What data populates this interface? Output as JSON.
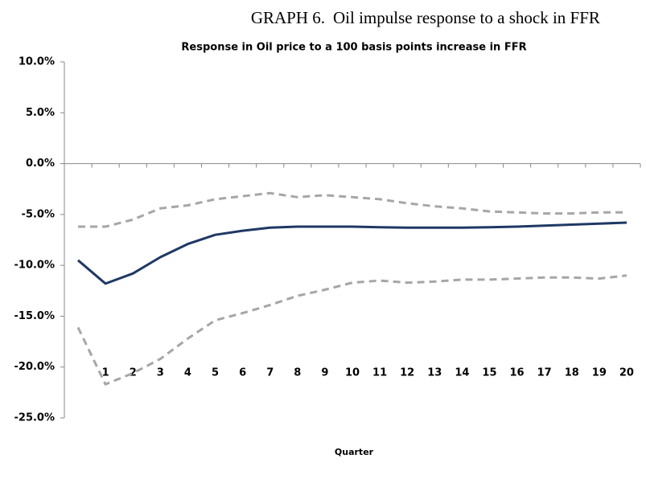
{
  "chart_data": {
    "type": "line",
    "label": "GRAPH 6.",
    "caption": "Oil impulse response to a shock in FFR",
    "title": "Response in Oil price to a  100 basis points increase in FFR",
    "x_label": "Quarter",
    "categories": [
      null,
      "1",
      "2",
      "3",
      "4",
      "5",
      "6",
      "7",
      "8",
      "9",
      "10",
      "11",
      "12",
      "13",
      "14",
      "15",
      "16",
      "17",
      "18",
      "19",
      "20"
    ],
    "series": [
      {
        "color": "#1f3864",
        "dashed": false,
        "values": [
          -9.5,
          -11.8,
          -10.8,
          -9.2,
          -7.9,
          -7.0,
          -6.6,
          -6.3,
          -6.2,
          -6.2,
          -6.2,
          -6.25,
          -6.3,
          -6.3,
          -6.3,
          -6.25,
          -6.2,
          -6.1,
          -6.0,
          -5.9,
          -5.8
        ]
      },
      {
        "color": "#a6a6a6",
        "dashed": true,
        "values": [
          -6.2,
          -6.2,
          -5.5,
          -4.4,
          -4.1,
          -3.5,
          -3.2,
          -2.9,
          -3.3,
          -3.1,
          -3.3,
          -3.5,
          -3.9,
          -4.2,
          -4.4,
          -4.7,
          -4.8,
          -4.9,
          -4.9,
          -4.8,
          -4.8
        ]
      },
      {
        "color": "#a6a6a6",
        "dashed": true,
        "values": [
          -16.1,
          -21.7,
          -20.6,
          -19.2,
          -17.2,
          -15.4,
          -14.7,
          -13.9,
          -13.0,
          -12.4,
          -11.7,
          -11.5,
          -11.7,
          -11.6,
          -11.4,
          -11.4,
          -11.3,
          -11.2,
          -11.2,
          -11.3,
          -11.0
        ]
      }
    ],
    "ylim": [
      -25,
      10
    ],
    "yticks": [
      {
        "value": -25,
        "label": "-25.0%"
      },
      {
        "value": -20,
        "label": "-20.0%"
      },
      {
        "value": -15,
        "label": "-15.0%"
      },
      {
        "value": -10,
        "label": "-10.0%"
      },
      {
        "value": -5,
        "label": "-5.0%"
      },
      {
        "value": 0,
        "label": "0.0%"
      },
      {
        "value": 5,
        "label": "5.0%"
      },
      {
        "value": 10,
        "label": "10.0%"
      }
    ],
    "grid": false
  }
}
